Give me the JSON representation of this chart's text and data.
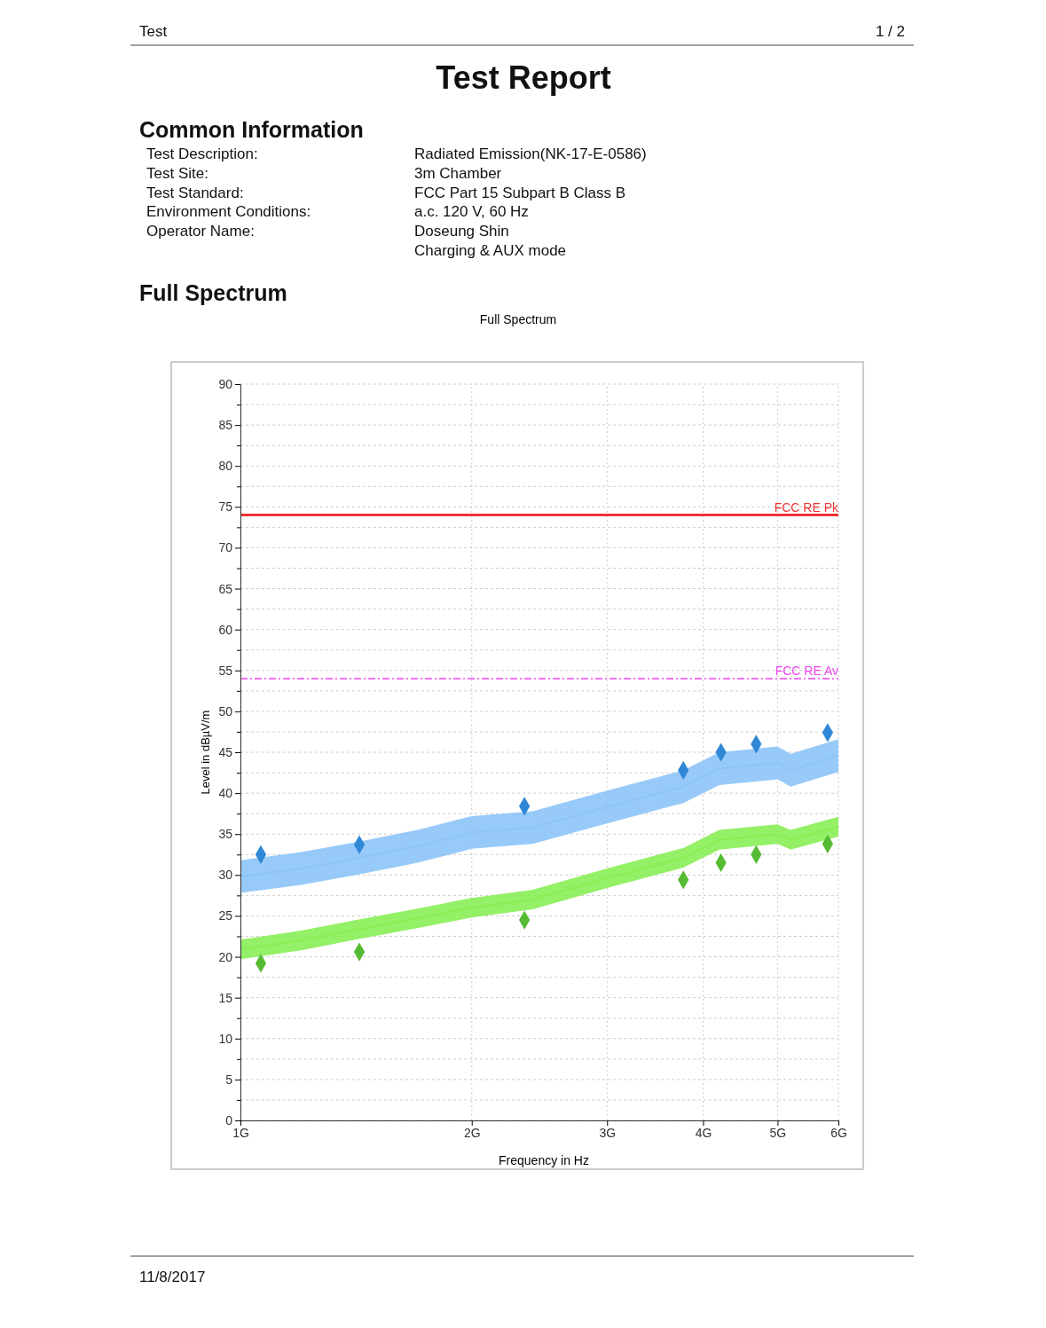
{
  "chart_data": {
    "type": "line",
    "title": "Full Spectrum",
    "xlabel": "Frequency in Hz",
    "ylabel": "Level in dBµV/m",
    "annotations": [
      "Test",
      "1 / 2",
      "Test Report",
      "Common Information",
      "Test Description:",
      "Radiated Emission(NK-17-E-0586)",
      "Test Site:",
      "3m Chamber",
      "Test Standard:",
      "FCC Part 15 Subpart B Class B",
      "Environment Conditions:",
      "a.c. 120 V, 60 Hz",
      "Operator Name:",
      "Doseung Shin",
      "Charging & AUX mode",
      "Full Spectrum",
      "11/8/2017"
    ],
    "log": "x",
    "xlim": [
      1,
      6
    ],
    "xticks": [
      {
        "value": 1,
        "label": "1G"
      },
      {
        "value": 2,
        "label": "2G"
      },
      {
        "value": 3,
        "label": "3G"
      },
      {
        "value": 4,
        "label": "4G"
      },
      {
        "value": 5,
        "label": "5G"
      },
      {
        "value": 6,
        "label": "6G"
      }
    ],
    "ylim": [
      0,
      90
    ],
    "yticks": [
      0,
      {
        "value": 2.5,
        "label": null
      },
      5,
      {
        "value": 7.5,
        "label": null
      },
      10,
      {
        "value": 12.5,
        "label": null
      },
      15,
      {
        "value": 17.5,
        "label": null
      },
      20,
      {
        "value": 22.5,
        "label": null
      },
      25,
      {
        "value": 27.5,
        "label": null
      },
      30,
      {
        "value": 32.5,
        "label": null
      },
      35,
      {
        "value": 37.5,
        "label": null
      },
      40,
      {
        "value": 42.5,
        "label": null
      },
      45,
      {
        "value": 47.5,
        "label": null
      },
      50,
      {
        "value": 52.5,
        "label": null
      },
      55,
      {
        "value": 57.5,
        "label": null
      },
      60,
      {
        "value": 62.5,
        "label": null
      },
      65,
      {
        "value": 67.5,
        "label": null
      },
      70,
      {
        "value": 72.5,
        "label": null
      },
      75,
      {
        "value": 77.5,
        "label": null
      },
      80,
      {
        "value": 82.5,
        "label": null
      },
      85,
      {
        "value": 87.5,
        "label": null
      },
      90
    ],
    "grid": true,
    "ref_lines": [
      {
        "axis": "y",
        "value": 74,
        "label": "FCC RE Pk",
        "color": "#ee3333",
        "line_style": "solid"
      },
      {
        "axis": "y",
        "value": 54,
        "label": "FCC RE Av",
        "color": "#ee44ee",
        "line_style": "dashed"
      }
    ],
    "series": [
      {
        "color": "#8cc4f8",
        "x": [
          1,
          1.2,
          1.43,
          1.7,
          2,
          2.4,
          3,
          3.77,
          4.2,
          5,
          5.2,
          6
        ],
        "values": [
          29.8,
          30.8,
          32.1,
          33.5,
          35.2,
          35.8,
          38.3,
          40.8,
          43.0,
          43.7,
          42.8,
          44.6
        ],
        "lower": [
          27.8,
          28.8,
          30.1,
          31.5,
          33.2,
          33.8,
          36.3,
          38.8,
          41.0,
          41.7,
          40.8,
          42.6
        ],
        "upper": [
          31.8,
          32.8,
          34.1,
          35.5,
          37.2,
          37.8,
          40.3,
          42.8,
          45.0,
          45.7,
          44.8,
          46.6
        ]
      },
      {
        "color": "#88ee55",
        "x": [
          1,
          1.2,
          1.43,
          1.7,
          2,
          2.4,
          3,
          3.77,
          4.2,
          5,
          5.2,
          6
        ],
        "values": [
          20.9,
          22.0,
          23.4,
          24.7,
          26.0,
          27.0,
          29.6,
          32.1,
          34.3,
          35.0,
          34.3,
          35.9
        ],
        "lower": [
          19.7,
          20.8,
          22.2,
          23.5,
          24.8,
          25.8,
          28.4,
          30.9,
          33.1,
          33.8,
          33.1,
          34.7
        ],
        "upper": [
          22.1,
          23.2,
          24.6,
          25.9,
          27.2,
          28.2,
          30.8,
          33.3,
          35.5,
          36.2,
          35.5,
          37.1
        ]
      },
      {
        "type": "scatter",
        "color": "#2f87d6",
        "marker": "diamond",
        "x": [
          1.063,
          1.428,
          2.342,
          3.77,
          4.22,
          4.69,
          5.81
        ],
        "values": [
          32.5,
          33.7,
          38.4,
          42.8,
          45.0,
          46.0,
          47.4
        ]
      },
      {
        "type": "scatter",
        "color": "#55bb33",
        "marker": "diamond",
        "x": [
          1.063,
          1.428,
          2.342,
          3.77,
          4.22,
          4.69,
          5.81
        ],
        "values": [
          19.2,
          20.6,
          24.5,
          29.4,
          31.5,
          32.5,
          33.8
        ]
      }
    ]
  }
}
